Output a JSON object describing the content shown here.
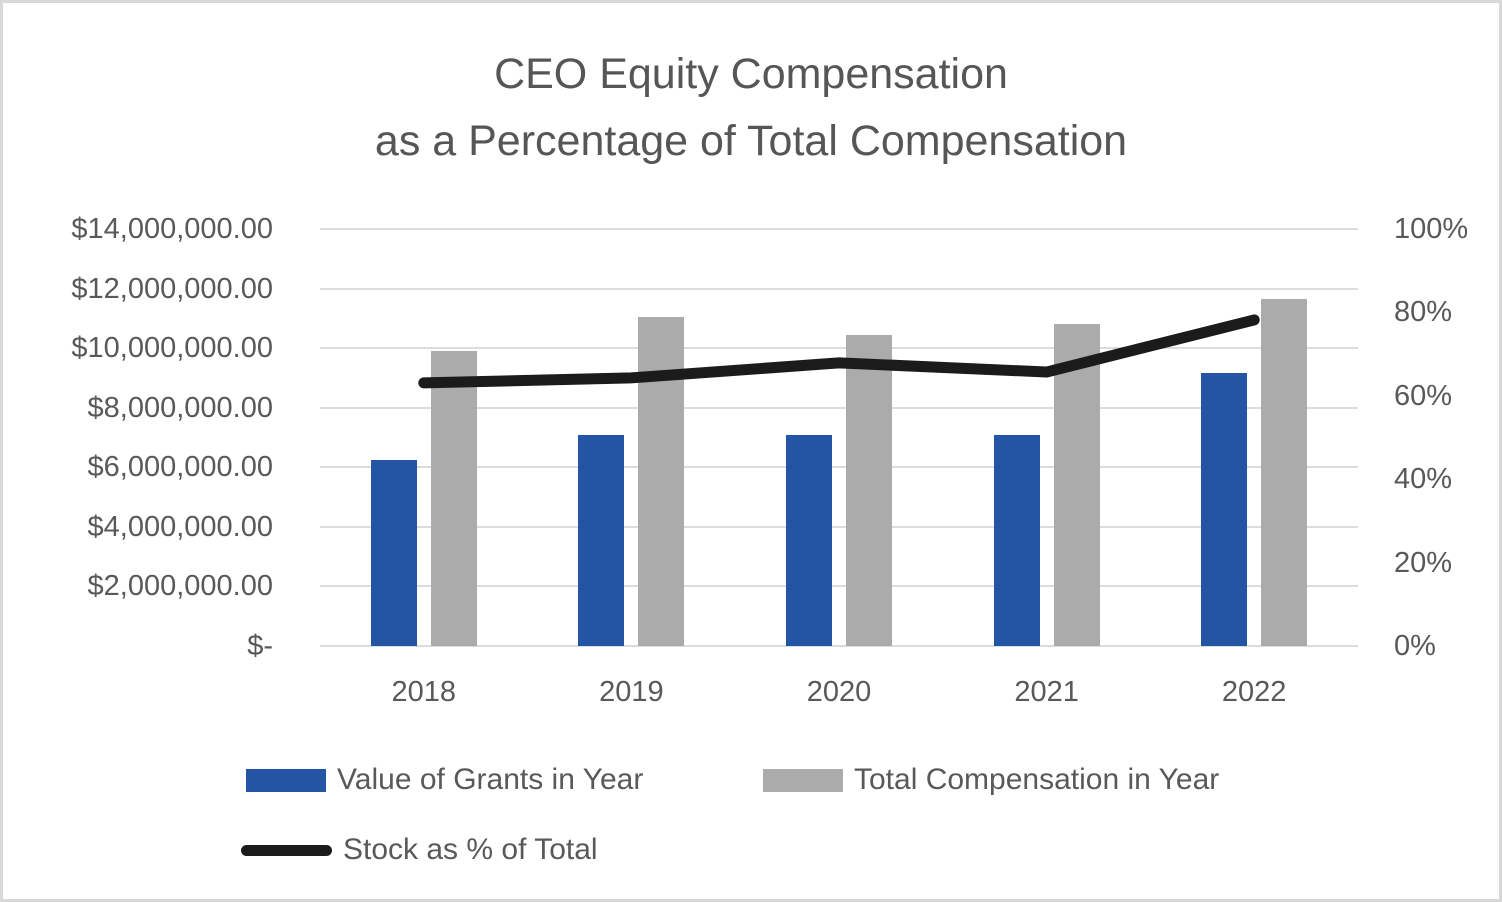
{
  "title": {
    "line1": "CEO Equity Compensation",
    "line2": "as a Percentage of Total Compensation"
  },
  "chart_data": {
    "type": "combo-bar-line",
    "categories": [
      "2018",
      "2019",
      "2020",
      "2021",
      "2022"
    ],
    "series": [
      {
        "name": "Value of Grants in Year",
        "type": "bar",
        "axis": "left",
        "color": "#2455A4",
        "values": [
          6250000,
          7100000,
          7100000,
          7100000,
          9150000
        ]
      },
      {
        "name": "Total Compensation in Year",
        "type": "bar",
        "axis": "left",
        "color": "#ABABAB",
        "values": [
          9900000,
          11050000,
          10450000,
          10800000,
          11650000
        ]
      },
      {
        "name": "Stock as % of Total",
        "type": "line",
        "axis": "right",
        "color": "#1B1B1B",
        "values": [
          0.631,
          0.643,
          0.679,
          0.657,
          0.782
        ]
      }
    ],
    "left_axis": {
      "min": 0,
      "max": 14000000,
      "tick_step": 2000000,
      "tick_labels": [
        "$14,000,000.00",
        "$12,000,000.00",
        "$10,000,000.00",
        "$8,000,000.00",
        "$6,000,000.00",
        "$4,000,000.00",
        "$2,000,000.00",
        "$-"
      ]
    },
    "right_axis": {
      "min": 0,
      "max": 1,
      "tick_step": 0.2,
      "tick_labels": [
        "100%",
        "80%",
        "60%",
        "40%",
        "20%",
        "0%"
      ]
    },
    "grid": true,
    "legend_position": "bottom-left",
    "colors": {
      "gridline": "#DCDCDC",
      "axis_text": "#595959",
      "title_text": "#565656"
    }
  }
}
